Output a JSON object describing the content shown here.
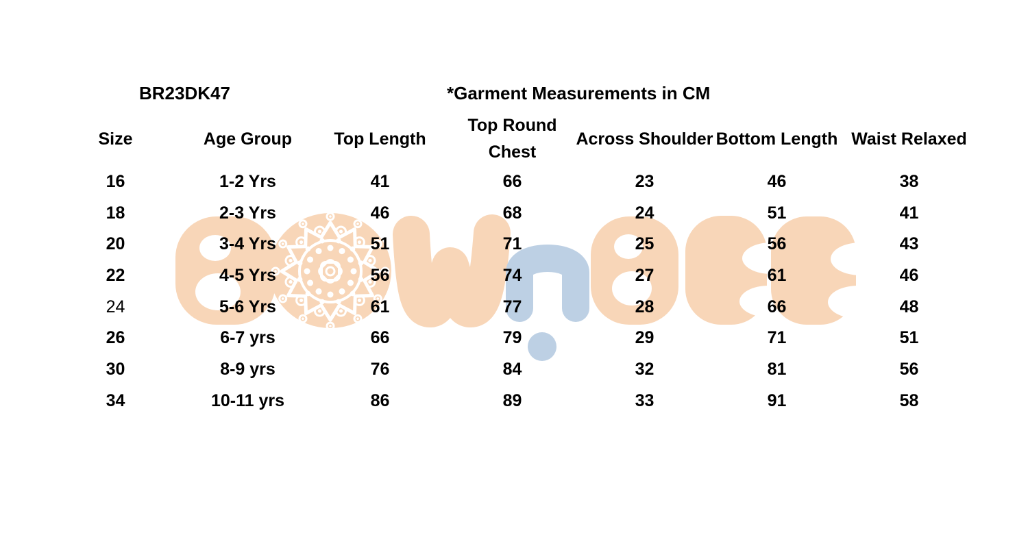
{
  "page": {
    "background": "#ffffff",
    "text_color": "#000000"
  },
  "header": {
    "product_code": "BR23DK47",
    "note": "*Garment Measurements in CM"
  },
  "table": {
    "columns": [
      "Size",
      "Age Group",
      "Top Length",
      "Top Round Chest",
      "Across Shoulder",
      "Bottom Length",
      "Waist Relaxed"
    ],
    "rows": [
      [
        "16",
        "1-2 Yrs",
        "41",
        "66",
        "23",
        "46",
        "38"
      ],
      [
        "18",
        "2-3 Yrs",
        "46",
        "68",
        "24",
        "51",
        "41"
      ],
      [
        "20",
        "3-4 Yrs",
        "51",
        "71",
        "25",
        "56",
        "43"
      ],
      [
        "22",
        "4-5 Yrs",
        "56",
        "74",
        "27",
        "61",
        "46"
      ],
      [
        "24",
        "5-6 Yrs",
        "61",
        "77",
        "28",
        "66",
        "48"
      ],
      [
        "26",
        "6-7 yrs",
        "66",
        "79",
        "29",
        "71",
        "51"
      ],
      [
        "30",
        "8-9 yrs",
        "76",
        "84",
        "32",
        "81",
        "56"
      ],
      [
        "34",
        "10-11 yrs",
        "86",
        "89",
        "33",
        "91",
        "58"
      ]
    ],
    "regular_weight_cells": [
      [
        4,
        0
      ]
    ]
  },
  "watermark": {
    "brand": "BOWnBEE",
    "peach": "#f8d6b8",
    "blue": "#bdd0e4",
    "mandala_color": "#ffffff"
  }
}
